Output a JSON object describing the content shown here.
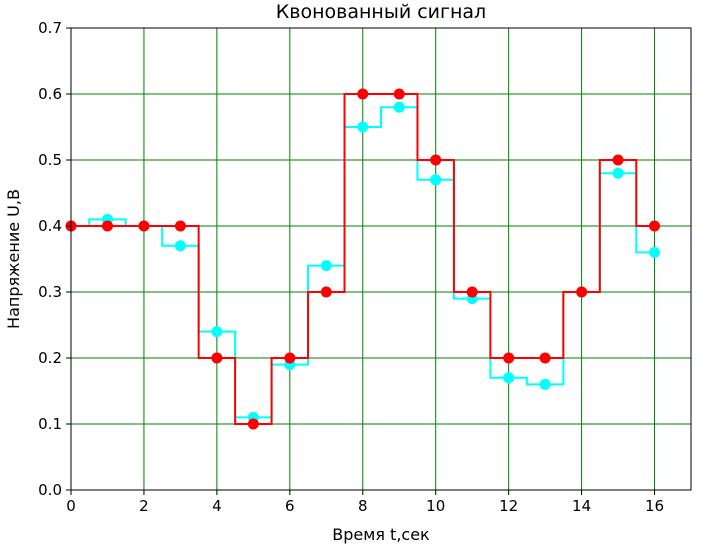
{
  "chart_data": {
    "type": "line",
    "title": "Квонованный сигнал",
    "xlabel": "Время t,сек",
    "ylabel": "Напряжение U,В",
    "xlim": [
      0,
      17
    ],
    "ylim": [
      0,
      0.7
    ],
    "xticks": [
      0,
      2,
      4,
      6,
      8,
      10,
      12,
      14,
      16
    ],
    "yticks": [
      0.0,
      0.1,
      0.2,
      0.3,
      0.4,
      0.5,
      0.6,
      0.7
    ],
    "xtick_labels": [
      "0",
      "2",
      "4",
      "6",
      "8",
      "10",
      "12",
      "14",
      "16"
    ],
    "ytick_labels": [
      "0.0",
      "0.1",
      "0.2",
      "0.3",
      "0.4",
      "0.5",
      "0.6",
      "0.7"
    ],
    "grid": true,
    "grid_color": "#008000",
    "x": [
      0,
      1,
      2,
      3,
      4,
      5,
      6,
      7,
      8,
      9,
      10,
      11,
      12,
      13,
      14,
      15,
      16
    ],
    "series": [
      {
        "style": "step-mid",
        "color": "#00ffff",
        "values": [
          0.4,
          0.41,
          0.4,
          0.37,
          0.24,
          0.11,
          0.19,
          0.34,
          0.55,
          0.58,
          0.47,
          0.29,
          0.17,
          0.16,
          0.3,
          0.48,
          0.36
        ]
      },
      {
        "style": "step-mid",
        "color": "#ff0000",
        "values": [
          0.4,
          0.4,
          0.4,
          0.4,
          0.2,
          0.1,
          0.2,
          0.3,
          0.6,
          0.6,
          0.5,
          0.3,
          0.2,
          0.2,
          0.3,
          0.5,
          0.4
        ]
      }
    ]
  }
}
